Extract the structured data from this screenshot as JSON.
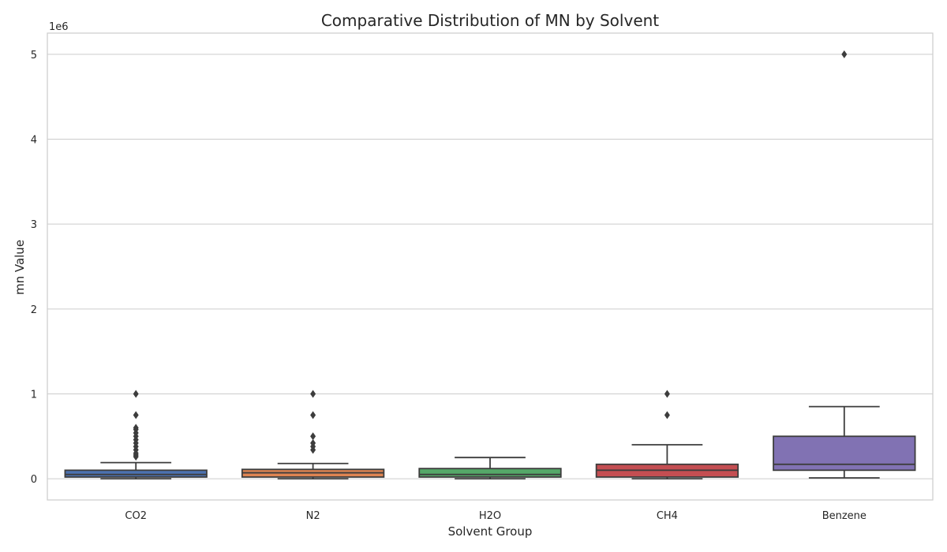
{
  "chart_data": {
    "type": "box",
    "title": "Comparative Distribution of MN by Solvent",
    "xlabel": "Solvent Group",
    "ylabel": "mn Value",
    "y_multiplier_label": "1e6",
    "ylim": [
      -0.25,
      5.25
    ],
    "yticks": [
      0,
      1,
      2,
      3,
      4,
      5
    ],
    "grid": true,
    "categories": [
      "CO2",
      "N2",
      "H2O",
      "CH4",
      "Benzene"
    ],
    "colors": [
      "#4c72b0",
      "#dd8452",
      "#55a868",
      "#c44e52",
      "#8172b3"
    ],
    "series": [
      {
        "category": "CO2",
        "whisker_low": 0.0,
        "q1": 0.02,
        "median": 0.05,
        "q3": 0.1,
        "whisker_high": 0.19,
        "outliers": [
          0.26,
          0.28,
          0.3,
          0.34,
          0.38,
          0.42,
          0.46,
          0.5,
          0.54,
          0.58,
          0.6,
          0.75,
          1.0
        ]
      },
      {
        "category": "N2",
        "whisker_low": 0.0,
        "q1": 0.02,
        "median": 0.07,
        "q3": 0.11,
        "whisker_high": 0.18,
        "outliers": [
          0.34,
          0.38,
          0.42,
          0.5,
          0.75,
          1.0
        ]
      },
      {
        "category": "H2O",
        "whisker_low": 0.0,
        "q1": 0.02,
        "median": 0.05,
        "q3": 0.12,
        "whisker_high": 0.25,
        "outliers": []
      },
      {
        "category": "CH4",
        "whisker_low": 0.0,
        "q1": 0.02,
        "median": 0.1,
        "q3": 0.17,
        "whisker_high": 0.4,
        "outliers": [
          0.75,
          1.0
        ]
      },
      {
        "category": "Benzene",
        "whisker_low": 0.01,
        "q1": 0.1,
        "median": 0.17,
        "q3": 0.5,
        "whisker_high": 0.85,
        "outliers": [
          5.0
        ]
      }
    ]
  }
}
